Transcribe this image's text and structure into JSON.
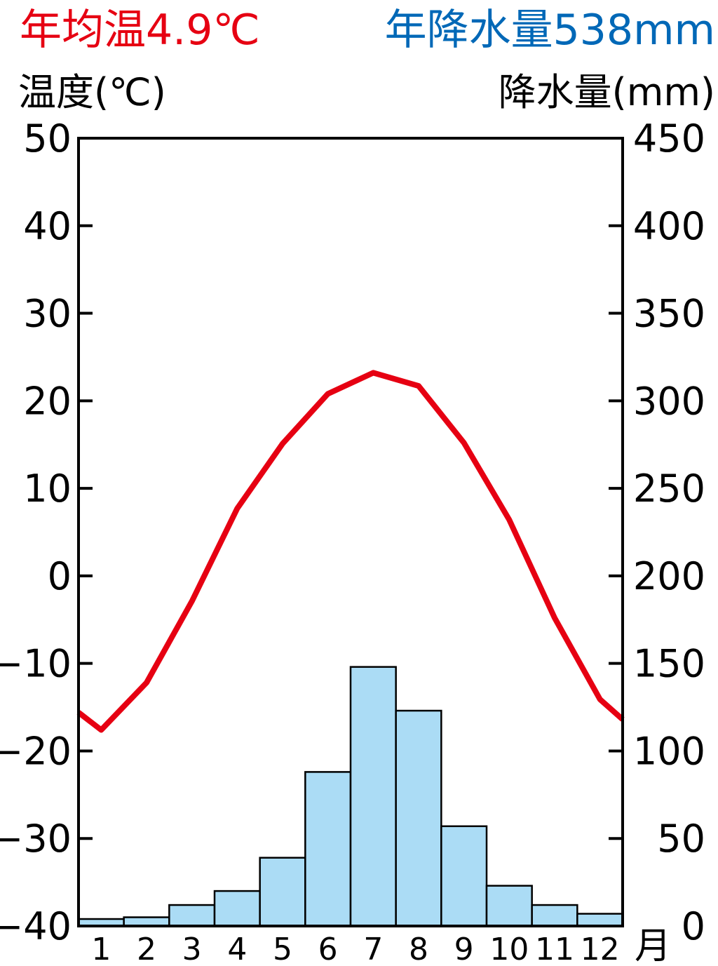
{
  "chart_data": {
    "type": "bar+line",
    "title_temp": "年均温4.9℃",
    "title_precip": "年降水量538mm",
    "ylabel_left": "温度(℃)",
    "ylabel_right": "降水量(mm)",
    "xlabel": "月",
    "categories": [
      "1",
      "2",
      "3",
      "4",
      "5",
      "6",
      "7",
      "8",
      "9",
      "10",
      "11",
      "12"
    ],
    "left_ticks": [
      "50",
      "40",
      "30",
      "20",
      "10",
      "0",
      "−10",
      "−20",
      "−30",
      "−40"
    ],
    "left_tick_values": [
      50,
      40,
      30,
      20,
      10,
      0,
      -10,
      -20,
      -30,
      -40
    ],
    "right_ticks": [
      "450",
      "400",
      "350",
      "300",
      "250",
      "200",
      "150",
      "100",
      "50",
      "0"
    ],
    "right_tick_values": [
      450,
      400,
      350,
      300,
      250,
      200,
      150,
      100,
      50,
      0
    ],
    "ylim_left": [
      -40,
      50
    ],
    "ylim_right": [
      0,
      450
    ],
    "series": [
      {
        "name": "温度",
        "type": "line",
        "unit": "℃",
        "color": "#e60012",
        "values": [
          -17.6,
          -12.2,
          -2.9,
          7.7,
          15.1,
          20.8,
          23.2,
          21.7,
          15.2,
          6.4,
          -4.8,
          -14.1
        ],
        "edge_start": -15.6,
        "edge_end": -16.4
      },
      {
        "name": "降水量",
        "type": "bar",
        "unit": "mm",
        "color": "#abdcf5",
        "values": [
          4,
          5,
          12,
          20,
          39,
          88,
          148,
          123,
          57,
          23,
          12,
          7
        ]
      }
    ],
    "colors": {
      "temp_title": "#e60012",
      "precip_title": "#0068b7",
      "axis": "#000000"
    }
  }
}
